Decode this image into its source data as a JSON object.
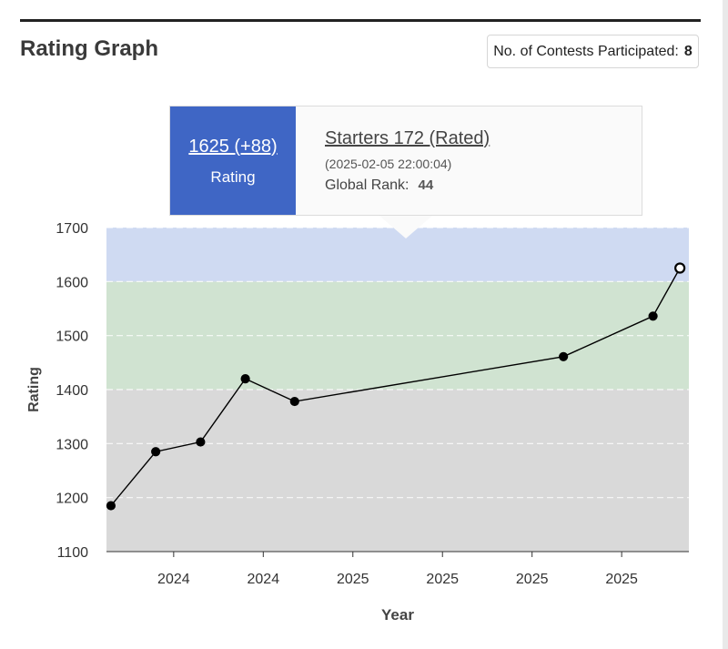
{
  "header": {
    "title": "Rating Graph",
    "contests_label": "No. of Contests Participated:",
    "contests_count": "8"
  },
  "tooltip": {
    "rating_value": "1625 (+88)",
    "rating_label": "Rating",
    "contest_name": "Starters 172 (Rated)",
    "contest_date": "(2025-02-05 22:00:04)",
    "rank_label": "Global Rank:",
    "rank_value": "44"
  },
  "colors": {
    "band_top": "#cfdaf2",
    "band_mid": "#d0e3d1",
    "band_low": "#d9d9d9",
    "tooltip_accent": "#3f66c5",
    "line": "#000000"
  },
  "chart_data": {
    "type": "line",
    "xlabel": "Year",
    "ylabel": "Rating",
    "ylim": [
      1100,
      1700
    ],
    "yticks": [
      1100,
      1200,
      1300,
      1400,
      1500,
      1600,
      1700
    ],
    "xlim": [
      0,
      13
    ],
    "xticks": [
      {
        "pos": 1.5,
        "label": "2024"
      },
      {
        "pos": 3.5,
        "label": "2024"
      },
      {
        "pos": 5.5,
        "label": "2025"
      },
      {
        "pos": 7.5,
        "label": "2025"
      },
      {
        "pos": 9.5,
        "label": "2025"
      },
      {
        "pos": 11.5,
        "label": "2025"
      }
    ],
    "bands": [
      {
        "from": 1100,
        "to": 1400,
        "color": "#d9d9d9"
      },
      {
        "from": 1400,
        "to": 1600,
        "color": "#d0e3d1"
      },
      {
        "from": 1600,
        "to": 1700,
        "color": "#cfdaf2"
      }
    ],
    "grid": true,
    "series": [
      {
        "x": [
          0.1,
          1.1,
          2.1,
          3.1,
          4.2,
          10.2,
          12.2,
          12.8
        ],
        "values": [
          1185,
          1285,
          1303,
          1420,
          1378,
          1461,
          1536,
          1625
        ],
        "highlight_index": 7
      }
    ]
  }
}
